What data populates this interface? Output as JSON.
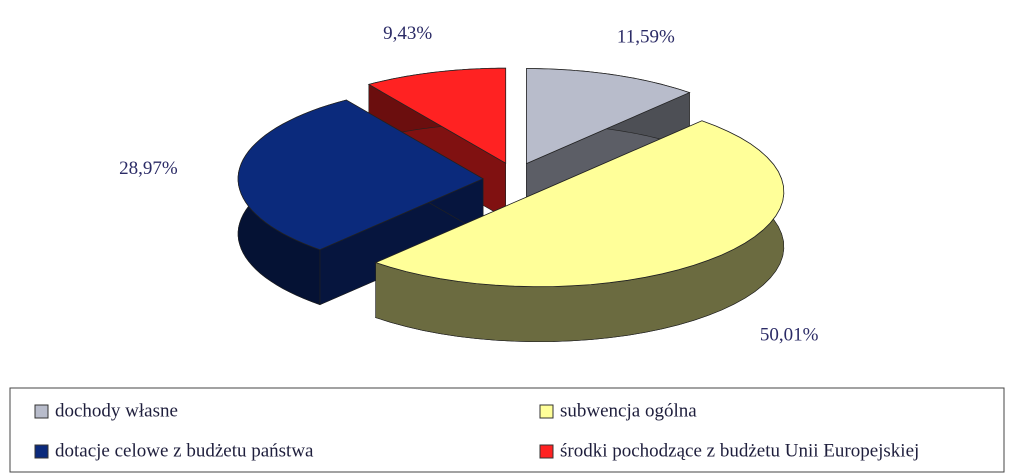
{
  "chart_data": {
    "type": "pie",
    "categories": [
      "dochody własne",
      "subwencja ogólna",
      "dotacje celowe z budżetu państwa",
      "środki pochodzące z budżetu Unii Europejskiej"
    ],
    "values": [
      11.59,
      50.01,
      28.97,
      9.43
    ],
    "value_labels": [
      "11,59%",
      "50,01%",
      "28,97%",
      "9,43%"
    ],
    "colors": [
      "#b8bccb",
      "#ffff99",
      "#0b2a7c",
      "#ff2222"
    ],
    "legend": "bottom"
  }
}
